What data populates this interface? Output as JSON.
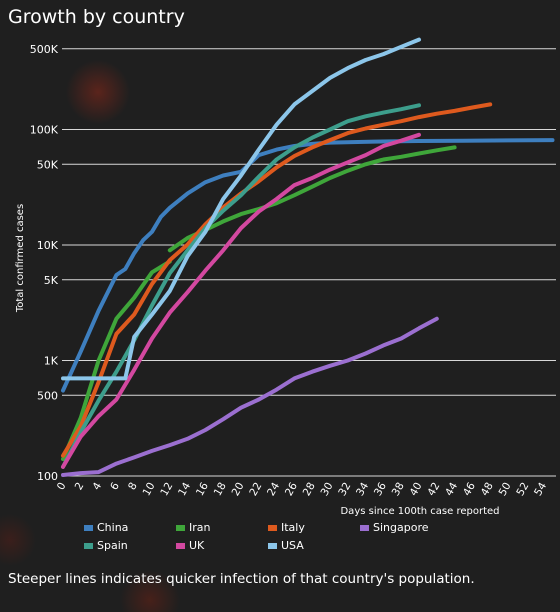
{
  "title": "Growth by country",
  "caption": "Steeper lines indicates quicker infection of that country's population.",
  "chart_data": {
    "type": "line",
    "ylabel": "Total confirmed cases",
    "xlabel": "Days since 100th case reported",
    "yscale": "log",
    "ylim": [
      100,
      600000
    ],
    "xlim": [
      0,
      55
    ],
    "y_ticks": [
      {
        "value": 100,
        "label": "100"
      },
      {
        "value": 500,
        "label": "500"
      },
      {
        "value": 1000,
        "label": "1K"
      },
      {
        "value": 5000,
        "label": "5K"
      },
      {
        "value": 10000,
        "label": "10K"
      },
      {
        "value": 50000,
        "label": "50K"
      },
      {
        "value": 100000,
        "label": "100K"
      },
      {
        "value": 500000,
        "label": "500K"
      }
    ],
    "x_ticks": [
      0,
      2,
      4,
      6,
      8,
      10,
      12,
      14,
      16,
      18,
      20,
      22,
      24,
      26,
      28,
      30,
      32,
      34,
      36,
      38,
      40,
      42,
      44,
      46,
      48,
      50,
      52,
      54
    ],
    "grid": true,
    "legend_position": "bottom",
    "series": [
      {
        "name": "China",
        "color": "#3e7fbf",
        "x": [
          0,
          2,
          4,
          6,
          7,
          8,
          9,
          10,
          11,
          12,
          14,
          16,
          18,
          20,
          22,
          24,
          26,
          28,
          30,
          35,
          40,
          45,
          50,
          55
        ],
        "y": [
          550,
          1200,
          2700,
          5500,
          6200,
          8500,
          11000,
          13000,
          17500,
          21000,
          28000,
          35000,
          40000,
          43000,
          60000,
          67000,
          72000,
          75000,
          77000,
          78500,
          79500,
          80000,
          80500,
          81000
        ]
      },
      {
        "name": "Iran",
        "color": "#3fa63a",
        "x": [
          0,
          2,
          4,
          6,
          8,
          10,
          12
        ],
        "y": [
          140,
          320,
          1000,
          2300,
          3500,
          5800,
          7200
        ]
      },
      {
        "name": "Iran",
        "color": "#3fa63a",
        "x": [
          12,
          14,
          16,
          18,
          20,
          22,
          24,
          26,
          28,
          30,
          32,
          34,
          36,
          38,
          40,
          42,
          44
        ],
        "y": [
          9000,
          11500,
          13500,
          16000,
          18500,
          20500,
          23000,
          27000,
          32000,
          38000,
          44000,
          50000,
          55000,
          58000,
          62000,
          66000,
          70000
        ]
      },
      {
        "name": "Italy",
        "color": "#de5a1e",
        "x": [
          0,
          2,
          4,
          6,
          8,
          10,
          12,
          14,
          16,
          18,
          20,
          22,
          24,
          26,
          28,
          30,
          32,
          34,
          36,
          38,
          40,
          42,
          44,
          46,
          48
        ],
        "y": [
          150,
          270,
          650,
          1700,
          2500,
          4600,
          7400,
          10100,
          15100,
          21100,
          27900,
          35700,
          47000,
          59000,
          70000,
          81000,
          93000,
          102000,
          110000,
          118000,
          128000,
          137000,
          145000,
          155000,
          165000
        ]
      },
      {
        "name": "Singapore",
        "color": "#9b6fd0",
        "x": [
          0,
          2,
          4,
          6,
          8,
          10,
          12,
          14,
          16,
          18,
          20,
          22,
          24,
          26,
          28,
          30,
          32,
          34,
          36,
          38,
          40,
          42
        ],
        "y": [
          102,
          106,
          108,
          128,
          145,
          165,
          185,
          210,
          250,
          310,
          390,
          460,
          560,
          700,
          800,
          900,
          1000,
          1150,
          1350,
          1550,
          1900,
          2300
        ]
      },
      {
        "name": "Spain",
        "color": "#3d9e8c",
        "x": [
          0,
          2,
          4,
          6,
          8,
          10,
          12,
          14,
          16,
          18,
          20,
          22,
          24,
          26,
          28,
          30,
          32,
          34,
          36,
          38,
          40
        ],
        "y": [
          120,
          240,
          450,
          800,
          1500,
          3000,
          5700,
          9000,
          14000,
          19800,
          27000,
          39000,
          55000,
          70000,
          85000,
          100000,
          118000,
          130000,
          140000,
          150000,
          162000
        ]
      },
      {
        "name": "UK",
        "color": "#d348a0",
        "x": [
          0,
          2,
          4,
          6,
          8,
          10,
          12,
          14,
          16,
          18,
          20,
          22,
          24,
          26,
          28,
          30,
          32,
          34,
          36,
          38,
          40
        ],
        "y": [
          120,
          220,
          330,
          460,
          830,
          1550,
          2600,
          3900,
          6000,
          9000,
          14000,
          19500,
          25000,
          33000,
          38000,
          45000,
          52000,
          60000,
          72000,
          80000,
          90000
        ]
      },
      {
        "name": "USA",
        "color": "#8cc6ea",
        "x": [
          0,
          4,
          6,
          7,
          8,
          10,
          12,
          14,
          16,
          18,
          20,
          22,
          24,
          26,
          28,
          30,
          32,
          34,
          36,
          38,
          40
        ],
        "y": [
          700,
          700,
          700,
          700,
          1600,
          2500,
          4000,
          8000,
          13000,
          25000,
          40000,
          67000,
          110000,
          165000,
          215000,
          280000,
          340000,
          400000,
          450000,
          520000,
          600000
        ]
      }
    ]
  }
}
